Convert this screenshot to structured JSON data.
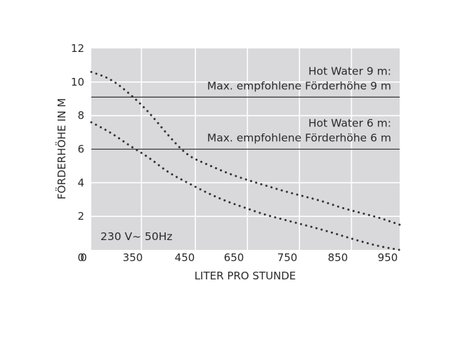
{
  "chart_data": {
    "type": "line",
    "title": "",
    "xlabel": "LITER PRO STUNDE",
    "ylabel": "FÖRDERHÖHE IN M",
    "x_tick_labels": [
      "350",
      "450",
      "650",
      "750",
      "850",
      "950"
    ],
    "y_ticks": [
      0,
      2,
      4,
      6,
      8,
      10,
      12
    ],
    "ylim": [
      0,
      12
    ],
    "grid": true,
    "background": "#d9d9dc",
    "series": [
      {
        "name": "",
        "style": "dotted",
        "points": [
          [
            0,
            10.6
          ],
          [
            0.5,
            10.2
          ],
          [
            1,
            9.3
          ],
          [
            1.5,
            8.2
          ],
          [
            2,
            6.8
          ],
          [
            2.5,
            5.6
          ],
          [
            3,
            5.1
          ],
          [
            3.5,
            4.6
          ],
          [
            4,
            4.2
          ],
          [
            4.5,
            3.85
          ],
          [
            5,
            3.5
          ],
          [
            5.5,
            3.2
          ],
          [
            6,
            2.9
          ],
          [
            6.5,
            2.5
          ],
          [
            7,
            2.2
          ],
          [
            7.5,
            1.9
          ],
          [
            8,
            1.5
          ]
        ]
      },
      {
        "name": "",
        "style": "dotted",
        "points": [
          [
            0,
            7.6
          ],
          [
            0.5,
            7.0
          ],
          [
            1,
            6.2
          ],
          [
            1.5,
            5.5
          ],
          [
            2,
            4.6
          ],
          [
            2.5,
            4.0
          ],
          [
            3,
            3.4
          ],
          [
            3.5,
            2.9
          ],
          [
            4,
            2.5
          ],
          [
            4.5,
            2.1
          ],
          [
            5,
            1.8
          ],
          [
            5.5,
            1.5
          ],
          [
            6,
            1.2
          ],
          [
            6.5,
            0.85
          ],
          [
            7,
            0.5
          ],
          [
            7.5,
            0.2
          ],
          [
            8,
            0.0
          ]
        ]
      }
    ],
    "reference_lines": [
      {
        "y": 9.1,
        "label_lines": [
          "Hot Water 9 m:",
          "Max. empfohlene Förderhöhe 9 m"
        ]
      },
      {
        "y": 6.0,
        "label_lines": [
          "Hot Water 6 m:",
          "Max. empfohlene Förderhöhe 6 m"
        ]
      }
    ],
    "annotations": [
      {
        "text": "230 V~ 50Hz",
        "position": "bottom-left"
      }
    ]
  }
}
